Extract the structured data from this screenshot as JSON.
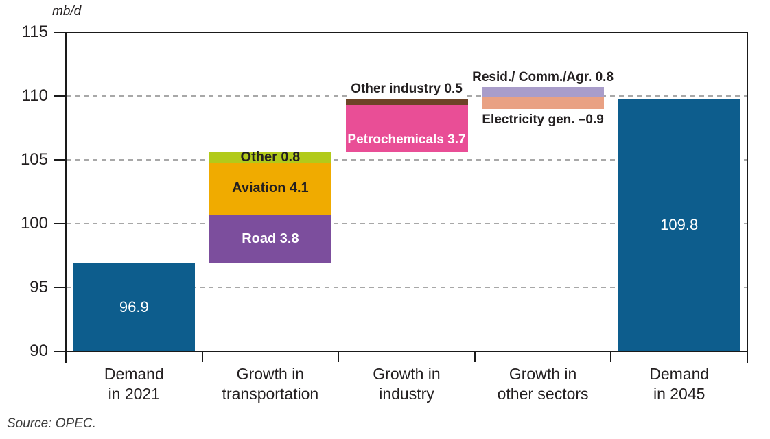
{
  "chart_data": {
    "type": "bar",
    "subtype": "waterfall",
    "title": "",
    "unit_label": "mb/d",
    "source_note": "Source: OPEC.",
    "ylabel": "mb/d",
    "ylim": [
      90,
      115
    ],
    "y_axis": {
      "min": 90,
      "max": 115,
      "step": 5,
      "tick_labels": [
        "115",
        "110",
        "105",
        "100",
        "95",
        "90"
      ],
      "tick_values": [
        115,
        110,
        105,
        100,
        95,
        90
      ],
      "gridline_values": [
        110,
        105,
        100,
        95
      ],
      "grid_style": "dashed"
    },
    "categories": [
      {
        "label_line1": "Demand",
        "label_line2": "in 2021"
      },
      {
        "label_line1": "Growth in",
        "label_line2": "transportation"
      },
      {
        "label_line1": "Growth in",
        "label_line2": "industry"
      },
      {
        "label_line1": "Growth in",
        "label_line2": "other sectors"
      },
      {
        "label_line1": "Demand",
        "label_line2": "in 2045"
      }
    ],
    "bars": [
      {
        "category_index": 0,
        "segments": [
          {
            "name": "Demand in 2021",
            "value": 96.9,
            "from": 90,
            "to": 96.9,
            "color": "#0d5d8d",
            "label": "96.9",
            "label_color": "#ffffff",
            "label_weight": "normal",
            "label_size": 22
          }
        ]
      },
      {
        "category_index": 1,
        "segments": [
          {
            "name": "Road",
            "value": 3.8,
            "from": 96.9,
            "to": 100.7,
            "color": "#7c4e9d",
            "label": "Road 3.8",
            "label_color": "#ffffff"
          },
          {
            "name": "Aviation",
            "value": 4.1,
            "from": 100.7,
            "to": 104.8,
            "color": "#f0ab00",
            "label": "Aviation 4.1",
            "label_color": "#231f20"
          },
          {
            "name": "Other",
            "value": 0.8,
            "from": 104.8,
            "to": 105.6,
            "color": "#b2ca1a",
            "label": "Other 0.8",
            "label_color": "#231f20"
          }
        ]
      },
      {
        "category_index": 2,
        "segments": [
          {
            "name": "Petrochemicals",
            "value": 3.7,
            "from": 105.6,
            "to": 109.3,
            "color": "#e94e96",
            "label": "Petrochemicals 3.7",
            "label_color": "#ffffff",
            "label_align": "bottom",
            "label_size": 19
          },
          {
            "name": "Other industry",
            "value": 0.5,
            "from": 109.3,
            "to": 109.8,
            "color": "#6d4327"
          }
        ]
      },
      {
        "category_index": 3,
        "segments": [
          {
            "name": "Resid./Comm./Agr.",
            "value": 0.8,
            "from": 109.9,
            "to": 110.7,
            "color": "#a99dca"
          },
          {
            "name": "Electricity gen.",
            "value": -0.9,
            "from": 109.0,
            "to": 109.9,
            "color": "#e9a183"
          }
        ]
      },
      {
        "category_index": 4,
        "segments": [
          {
            "name": "Demand in 2045",
            "value": 109.8,
            "from": 90,
            "to": 109.8,
            "color": "#0d5d8d",
            "label": "109.8",
            "label_color": "#ffffff",
            "label_weight": "normal",
            "label_size": 22
          }
        ]
      }
    ],
    "annotations": [
      {
        "text": "Other industry 0.5",
        "category_index": 2,
        "anchor": "above",
        "value": 109.8
      },
      {
        "text": "Resid./ Comm./Agr. 0.8",
        "category_index": 3,
        "anchor": "above",
        "value": 110.7
      },
      {
        "text": "Electricity gen. –0.9",
        "category_index": 3,
        "anchor": "below",
        "value": 109.0
      }
    ],
    "colors": {
      "axis": "#1a1a1a",
      "grid": "#a8a8a8",
      "text": "#231f20",
      "source_text": "#3d3d3d",
      "demand_bar": "#0d5d8d"
    }
  }
}
